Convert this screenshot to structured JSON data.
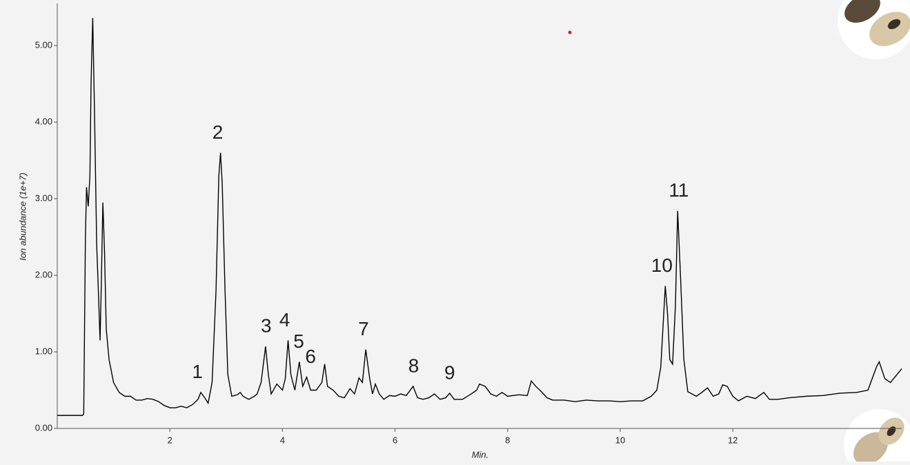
{
  "chart_data": {
    "type": "line",
    "x_label": "Min.",
    "y_label": "Ion abundance (1e+7)",
    "xlim": [
      0,
      15
    ],
    "ylim": [
      0,
      5.55
    ],
    "xticks": [
      2,
      4,
      6,
      8,
      10,
      12
    ],
    "yticks": [
      {
        "value": 0,
        "label": "0.00"
      },
      {
        "value": 1,
        "label": "1.00"
      },
      {
        "value": 2,
        "label": "2.00"
      },
      {
        "value": 3,
        "label": "3.00"
      },
      {
        "value": 4,
        "label": "4.00"
      },
      {
        "value": 5,
        "label": "5.00"
      }
    ],
    "x": [
      0.0,
      0.45,
      0.47,
      0.5,
      0.52,
      0.55,
      0.58,
      0.6,
      0.63,
      0.66,
      0.7,
      0.73,
      0.76,
      0.78,
      0.81,
      0.84,
      0.87,
      0.92,
      1.0,
      1.1,
      1.2,
      1.3,
      1.4,
      1.5,
      1.6,
      1.7,
      1.8,
      1.9,
      2.0,
      2.1,
      2.2,
      2.3,
      2.4,
      2.5,
      2.55,
      2.62,
      2.68,
      2.75,
      2.82,
      2.87,
      2.9,
      2.93,
      2.98,
      3.03,
      3.1,
      3.2,
      3.25,
      3.3,
      3.4,
      3.5,
      3.55,
      3.62,
      3.7,
      3.75,
      3.8,
      3.9,
      4.0,
      4.05,
      4.1,
      4.15,
      4.22,
      4.3,
      4.36,
      4.43,
      4.5,
      4.6,
      4.7,
      4.75,
      4.8,
      4.9,
      5.0,
      5.1,
      5.2,
      5.28,
      5.36,
      5.42,
      5.48,
      5.55,
      5.6,
      5.65,
      5.72,
      5.8,
      5.9,
      6.0,
      6.1,
      6.2,
      6.32,
      6.4,
      6.5,
      6.6,
      6.7,
      6.8,
      6.9,
      6.97,
      7.05,
      7.2,
      7.35,
      7.45,
      7.5,
      7.6,
      7.7,
      7.8,
      7.9,
      8.0,
      8.2,
      8.35,
      8.42,
      8.5,
      8.6,
      8.7,
      8.8,
      9.0,
      9.2,
      9.4,
      9.6,
      9.8,
      10.0,
      10.2,
      10.4,
      10.55,
      10.65,
      10.72,
      10.8,
      10.84,
      10.88,
      10.93,
      10.98,
      11.02,
      11.07,
      11.13,
      11.2,
      11.35,
      11.45,
      11.55,
      11.65,
      11.75,
      11.82,
      11.9,
      12.0,
      12.1,
      12.25,
      12.4,
      12.55,
      12.65,
      12.8,
      13.0,
      13.3,
      13.6,
      13.9,
      14.2,
      14.4,
      14.55,
      14.6,
      14.7,
      14.8,
      15.0
    ],
    "series": [
      {
        "color": "#000000",
        "values": [
          0.17,
          0.17,
          0.19,
          2.5,
          3.15,
          2.9,
          3.3,
          4.5,
          5.36,
          4.2,
          2.4,
          1.8,
          1.15,
          1.8,
          2.95,
          2.3,
          1.3,
          0.9,
          0.6,
          0.47,
          0.42,
          0.42,
          0.37,
          0.37,
          0.39,
          0.38,
          0.35,
          0.3,
          0.27,
          0.27,
          0.29,
          0.27,
          0.31,
          0.38,
          0.47,
          0.4,
          0.33,
          0.6,
          1.8,
          3.3,
          3.6,
          3.2,
          1.8,
          0.7,
          0.42,
          0.44,
          0.47,
          0.42,
          0.38,
          0.42,
          0.45,
          0.6,
          1.07,
          0.7,
          0.45,
          0.58,
          0.5,
          0.65,
          1.15,
          0.7,
          0.5,
          0.87,
          0.55,
          0.67,
          0.5,
          0.5,
          0.6,
          0.84,
          0.55,
          0.5,
          0.42,
          0.4,
          0.52,
          0.45,
          0.66,
          0.6,
          1.03,
          0.65,
          0.45,
          0.58,
          0.45,
          0.38,
          0.43,
          0.42,
          0.45,
          0.43,
          0.55,
          0.4,
          0.38,
          0.4,
          0.45,
          0.38,
          0.4,
          0.46,
          0.38,
          0.38,
          0.45,
          0.5,
          0.58,
          0.55,
          0.45,
          0.42,
          0.47,
          0.42,
          0.44,
          0.43,
          0.62,
          0.55,
          0.48,
          0.4,
          0.37,
          0.37,
          0.35,
          0.37,
          0.36,
          0.36,
          0.35,
          0.36,
          0.36,
          0.42,
          0.5,
          0.8,
          1.86,
          1.5,
          0.9,
          0.84,
          1.6,
          2.84,
          2.0,
          0.9,
          0.48,
          0.42,
          0.47,
          0.53,
          0.42,
          0.45,
          0.57,
          0.55,
          0.42,
          0.36,
          0.42,
          0.39,
          0.47,
          0.38,
          0.38,
          0.4,
          0.42,
          0.43,
          0.46,
          0.47,
          0.5,
          0.8,
          0.87,
          0.65,
          0.6,
          0.78
        ]
      }
    ],
    "annotations": [
      {
        "text": "1",
        "x": 2.49
      },
      {
        "text": "2",
        "x": 2.85
      },
      {
        "text": "3",
        "x": 3.71
      },
      {
        "text": "4",
        "x": 4.04
      },
      {
        "text": "5",
        "x": 4.29
      },
      {
        "text": "6",
        "x": 4.5
      },
      {
        "text": "7",
        "x": 5.44
      },
      {
        "text": "8",
        "x": 6.33
      },
      {
        "text": "9",
        "x": 6.97
      },
      {
        "text": "10",
        "x": 10.74
      },
      {
        "text": "11",
        "x": 11.04
      }
    ]
  }
}
